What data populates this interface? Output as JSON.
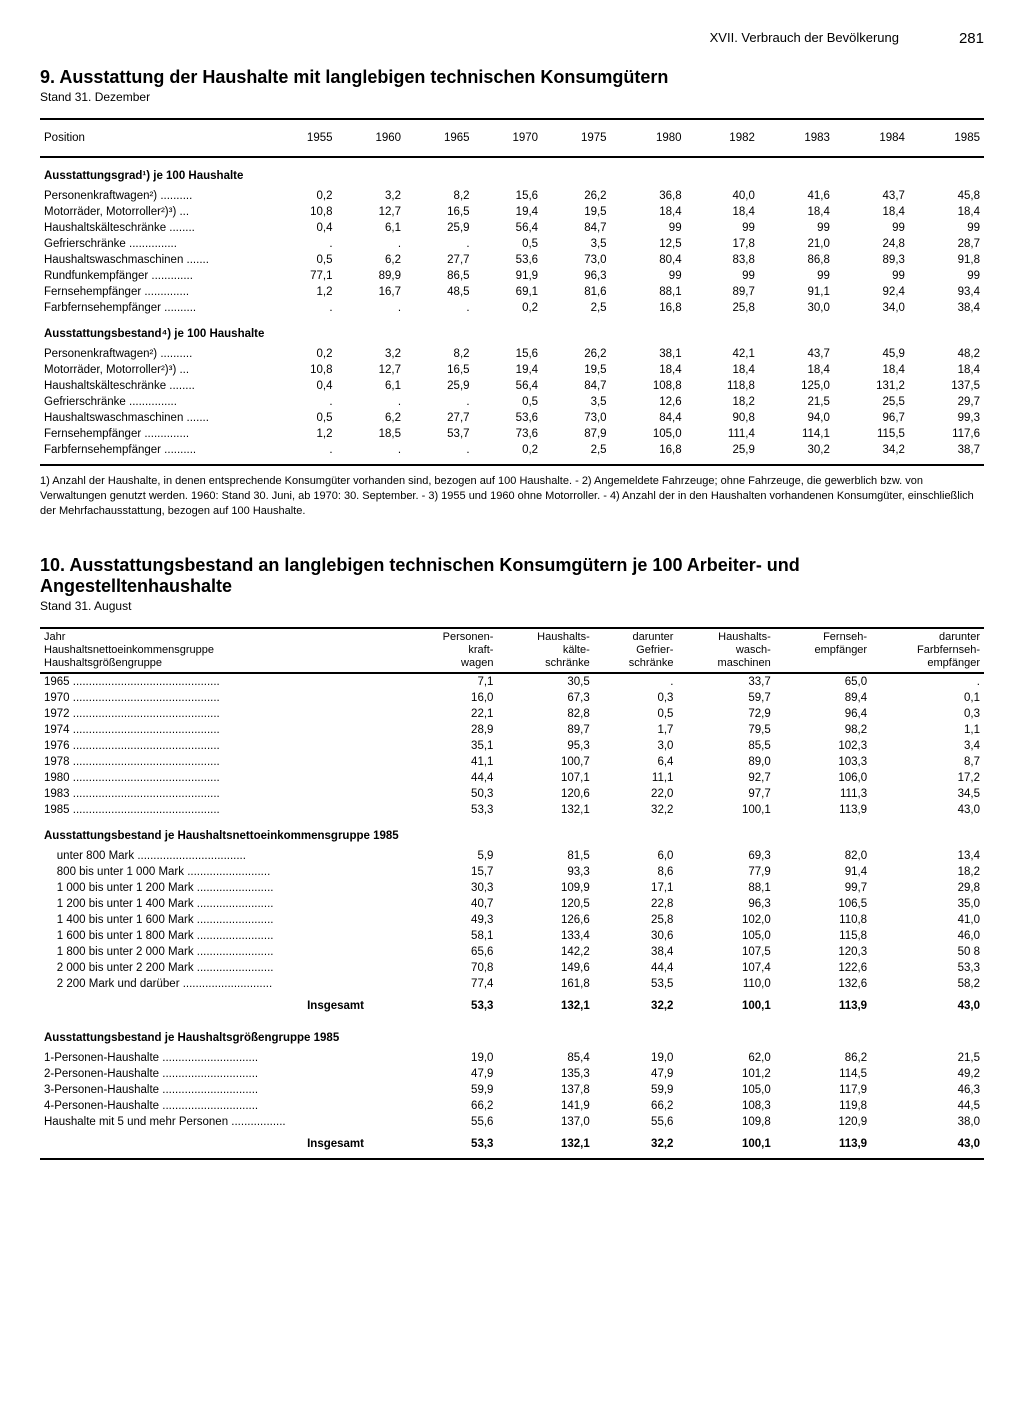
{
  "header": {
    "chapter": "XVII. Verbrauch der Bevölkerung",
    "page": "281"
  },
  "table9": {
    "title": "9. Ausstattung der Haushalte mit langlebigen technischen Konsumgütern",
    "subtitle": "Stand 31. Dezember",
    "position_label": "Position",
    "years": [
      "1955",
      "1960",
      "1965",
      "1970",
      "1975",
      "1980",
      "1982",
      "1983",
      "1984",
      "1985"
    ],
    "section_a": "Ausstattungsgrad¹) je 100 Haushalte",
    "rows_a": [
      {
        "label": "Personenkraftwagen²)",
        "vals": [
          "0,2",
          "3,2",
          "8,2",
          "15,6",
          "26,2",
          "36,8",
          "40,0",
          "41,6",
          "43,7",
          "45,8"
        ]
      },
      {
        "label": "Motorräder, Motorroller²)³)",
        "vals": [
          "10,8",
          "12,7",
          "16,5",
          "19,4",
          "19,5",
          "18,4",
          "18,4",
          "18,4",
          "18,4",
          "18,4"
        ]
      },
      {
        "label": "Haushaltskälteschränke",
        "vals": [
          "0,4",
          "6,1",
          "25,9",
          "56,4",
          "84,7",
          "99",
          "99",
          "99",
          "99",
          "99"
        ]
      },
      {
        "label": "Gefrierschränke",
        "vals": [
          ".",
          ".",
          ".",
          "0,5",
          "3,5",
          "12,5",
          "17,8",
          "21,0",
          "24,8",
          "28,7"
        ]
      },
      {
        "label": "Haushaltswaschmaschinen",
        "vals": [
          "0,5",
          "6,2",
          "27,7",
          "53,6",
          "73,0",
          "80,4",
          "83,8",
          "86,8",
          "89,3",
          "91,8"
        ]
      },
      {
        "label": "Rundfunkempfänger",
        "vals": [
          "77,1",
          "89,9",
          "86,5",
          "91,9",
          "96,3",
          "99",
          "99",
          "99",
          "99",
          "99"
        ]
      },
      {
        "label": "Fernsehempfänger",
        "vals": [
          "1,2",
          "16,7",
          "48,5",
          "69,1",
          "81,6",
          "88,1",
          "89,7",
          "91,1",
          "92,4",
          "93,4"
        ]
      },
      {
        "label": "Farbfernsehempfänger",
        "vals": [
          ".",
          ".",
          ".",
          "0,2",
          "2,5",
          "16,8",
          "25,8",
          "30,0",
          "34,0",
          "38,4"
        ]
      }
    ],
    "section_b": "Ausstattungsbestand⁴) je 100 Haushalte",
    "rows_b": [
      {
        "label": "Personenkraftwagen²)",
        "vals": [
          "0,2",
          "3,2",
          "8,2",
          "15,6",
          "26,2",
          "38,1",
          "42,1",
          "43,7",
          "45,9",
          "48,2"
        ]
      },
      {
        "label": "Motorräder, Motorroller²)³)",
        "vals": [
          "10,8",
          "12,7",
          "16,5",
          "19,4",
          "19,5",
          "18,4",
          "18,4",
          "18,4",
          "18,4",
          "18,4"
        ]
      },
      {
        "label": "Haushaltskälteschränke",
        "vals": [
          "0,4",
          "6,1",
          "25,9",
          "56,4",
          "84,7",
          "108,8",
          "118,8",
          "125,0",
          "131,2",
          "137,5"
        ]
      },
      {
        "label": "Gefrierschränke",
        "vals": [
          ".",
          ".",
          ".",
          "0,5",
          "3,5",
          "12,6",
          "18,2",
          "21,5",
          "25,5",
          "29,7"
        ]
      },
      {
        "label": "Haushaltswaschmaschinen",
        "vals": [
          "0,5",
          "6,2",
          "27,7",
          "53,6",
          "73,0",
          "84,4",
          "90,8",
          "94,0",
          "96,7",
          "99,3"
        ]
      },
      {
        "label": "Fernsehempfänger",
        "vals": [
          "1,2",
          "18,5",
          "53,7",
          "73,6",
          "87,9",
          "105,0",
          "111,4",
          "114,1",
          "115,5",
          "117,6"
        ]
      },
      {
        "label": "Farbfernsehempfänger",
        "vals": [
          ".",
          ".",
          ".",
          "0,2",
          "2,5",
          "16,8",
          "25,9",
          "30,2",
          "34,2",
          "38,7"
        ]
      }
    ],
    "footnote": "1) Anzahl der Haushalte, in denen entsprechende Konsumgüter vorhanden sind, bezogen auf 100 Haushalte. - 2) Angemeldete Fahrzeuge; ohne Fahrzeuge, die gewerblich bzw. von Verwaltungen genutzt werden. 1960: Stand 30. Juni, ab 1970: 30. September. - 3) 1955 und 1960 ohne Motorroller. - 4) Anzahl der in den Haushalten vorhandenen Konsumgüter, einschließlich der Mehrfachausstattung, bezogen auf 100 Haushalte."
  },
  "table10": {
    "title": "10. Ausstattungsbestand an langlebigen technischen Konsumgütern je 100 Arbeiter- und Angestelltenhaushalte",
    "subtitle": "Stand 31. August",
    "rowhead": "Jahr\nHaushaltsnettoeinkommensgruppe\nHaushaltsgrößengruppe",
    "cols": [
      "Personen-\nkraft-\nwagen",
      "Haushalts-\nkälte-\nschränke",
      "darunter\nGefrier-\nschränke",
      "Haushalts-\nwasch-\nmaschinen",
      "Fernseh-\nempfänger",
      "darunter\nFarbfernseh-\nempfänger"
    ],
    "year_rows": [
      {
        "label": "1965",
        "vals": [
          "7,1",
          "30,5",
          ".",
          "33,7",
          "65,0",
          "."
        ]
      },
      {
        "label": "1970",
        "vals": [
          "16,0",
          "67,3",
          "0,3",
          "59,7",
          "89,4",
          "0,1"
        ]
      },
      {
        "label": "1972",
        "vals": [
          "22,1",
          "82,8",
          "0,5",
          "72,9",
          "96,4",
          "0,3"
        ]
      },
      {
        "label": "1974",
        "vals": [
          "28,9",
          "89,7",
          "1,7",
          "79,5",
          "98,2",
          "1,1"
        ]
      },
      {
        "label": "1976",
        "vals": [
          "35,1",
          "95,3",
          "3,0",
          "85,5",
          "102,3",
          "3,4"
        ]
      },
      {
        "label": "1978",
        "vals": [
          "41,1",
          "100,7",
          "6,4",
          "89,0",
          "103,3",
          "8,7"
        ]
      },
      {
        "label": "1980",
        "vals": [
          "44,4",
          "107,1",
          "11,1",
          "92,7",
          "106,0",
          "17,2"
        ]
      },
      {
        "label": "1983",
        "vals": [
          "50,3",
          "120,6",
          "22,0",
          "97,7",
          "111,3",
          "34,5"
        ]
      },
      {
        "label": "1985",
        "vals": [
          "53,3",
          "132,1",
          "32,2",
          "100,1",
          "113,9",
          "43,0"
        ]
      }
    ],
    "section_income": "Ausstattungsbestand je Haushaltsnettoeinkommensgruppe 1985",
    "income_rows": [
      {
        "label": "unter   800 Mark",
        "vals": [
          "5,9",
          "81,5",
          "6,0",
          "69,3",
          "82,0",
          "13,4"
        ]
      },
      {
        "label": "800 bis unter 1 000 Mark",
        "vals": [
          "15,7",
          "93,3",
          "8,6",
          "77,9",
          "91,4",
          "18,2"
        ]
      },
      {
        "label": "1 000 bis unter 1 200 Mark",
        "vals": [
          "30,3",
          "109,9",
          "17,1",
          "88,1",
          "99,7",
          "29,8"
        ]
      },
      {
        "label": "1 200 bis unter 1 400 Mark",
        "vals": [
          "40,7",
          "120,5",
          "22,8",
          "96,3",
          "106,5",
          "35,0"
        ]
      },
      {
        "label": "1 400 bis unter 1 600 Mark",
        "vals": [
          "49,3",
          "126,6",
          "25,8",
          "102,0",
          "110,8",
          "41,0"
        ]
      },
      {
        "label": "1 600 bis unter 1 800 Mark",
        "vals": [
          "58,1",
          "133,4",
          "30,6",
          "105,0",
          "115,8",
          "46,0"
        ]
      },
      {
        "label": "1 800 bis unter 2 000 Mark",
        "vals": [
          "65,6",
          "142,2",
          "38,4",
          "107,5",
          "120,3",
          "50 8"
        ]
      },
      {
        "label": "2 000 bis unter 2 200 Mark",
        "vals": [
          "70,8",
          "149,6",
          "44,4",
          "107,4",
          "122,6",
          "53,3"
        ]
      },
      {
        "label": "2 200 Mark und darüber",
        "vals": [
          "77,4",
          "161,8",
          "53,5",
          "110,0",
          "132,6",
          "58,2"
        ]
      }
    ],
    "income_total": {
      "label": "Insgesamt",
      "vals": [
        "53,3",
        "132,1",
        "32,2",
        "100,1",
        "113,9",
        "43,0"
      ]
    },
    "section_size": "Ausstattungsbestand je Haushaltsgrößengruppe 1985",
    "size_rows": [
      {
        "label": "1-Personen-Haushalte",
        "vals": [
          "19,0",
          "85,4",
          "19,0",
          "62,0",
          "86,2",
          "21,5"
        ]
      },
      {
        "label": "2-Personen-Haushalte",
        "vals": [
          "47,9",
          "135,3",
          "47,9",
          "101,2",
          "114,5",
          "49,2"
        ]
      },
      {
        "label": "3-Personen-Haushalte",
        "vals": [
          "59,9",
          "137,8",
          "59,9",
          "105,0",
          "117,9",
          "46,3"
        ]
      },
      {
        "label": "4-Personen-Haushalte",
        "vals": [
          "66,2",
          "141,9",
          "66,2",
          "108,3",
          "119,8",
          "44,5"
        ]
      },
      {
        "label": "Haushalte mit 5 und mehr Personen",
        "vals": [
          "55,6",
          "137,0",
          "55,6",
          "109,8",
          "120,9",
          "38,0"
        ]
      }
    ],
    "size_total": {
      "label": "Insgesamt",
      "vals": [
        "53,3",
        "132,1",
        "32,2",
        "100,1",
        "113,9",
        "43,0"
      ]
    }
  }
}
